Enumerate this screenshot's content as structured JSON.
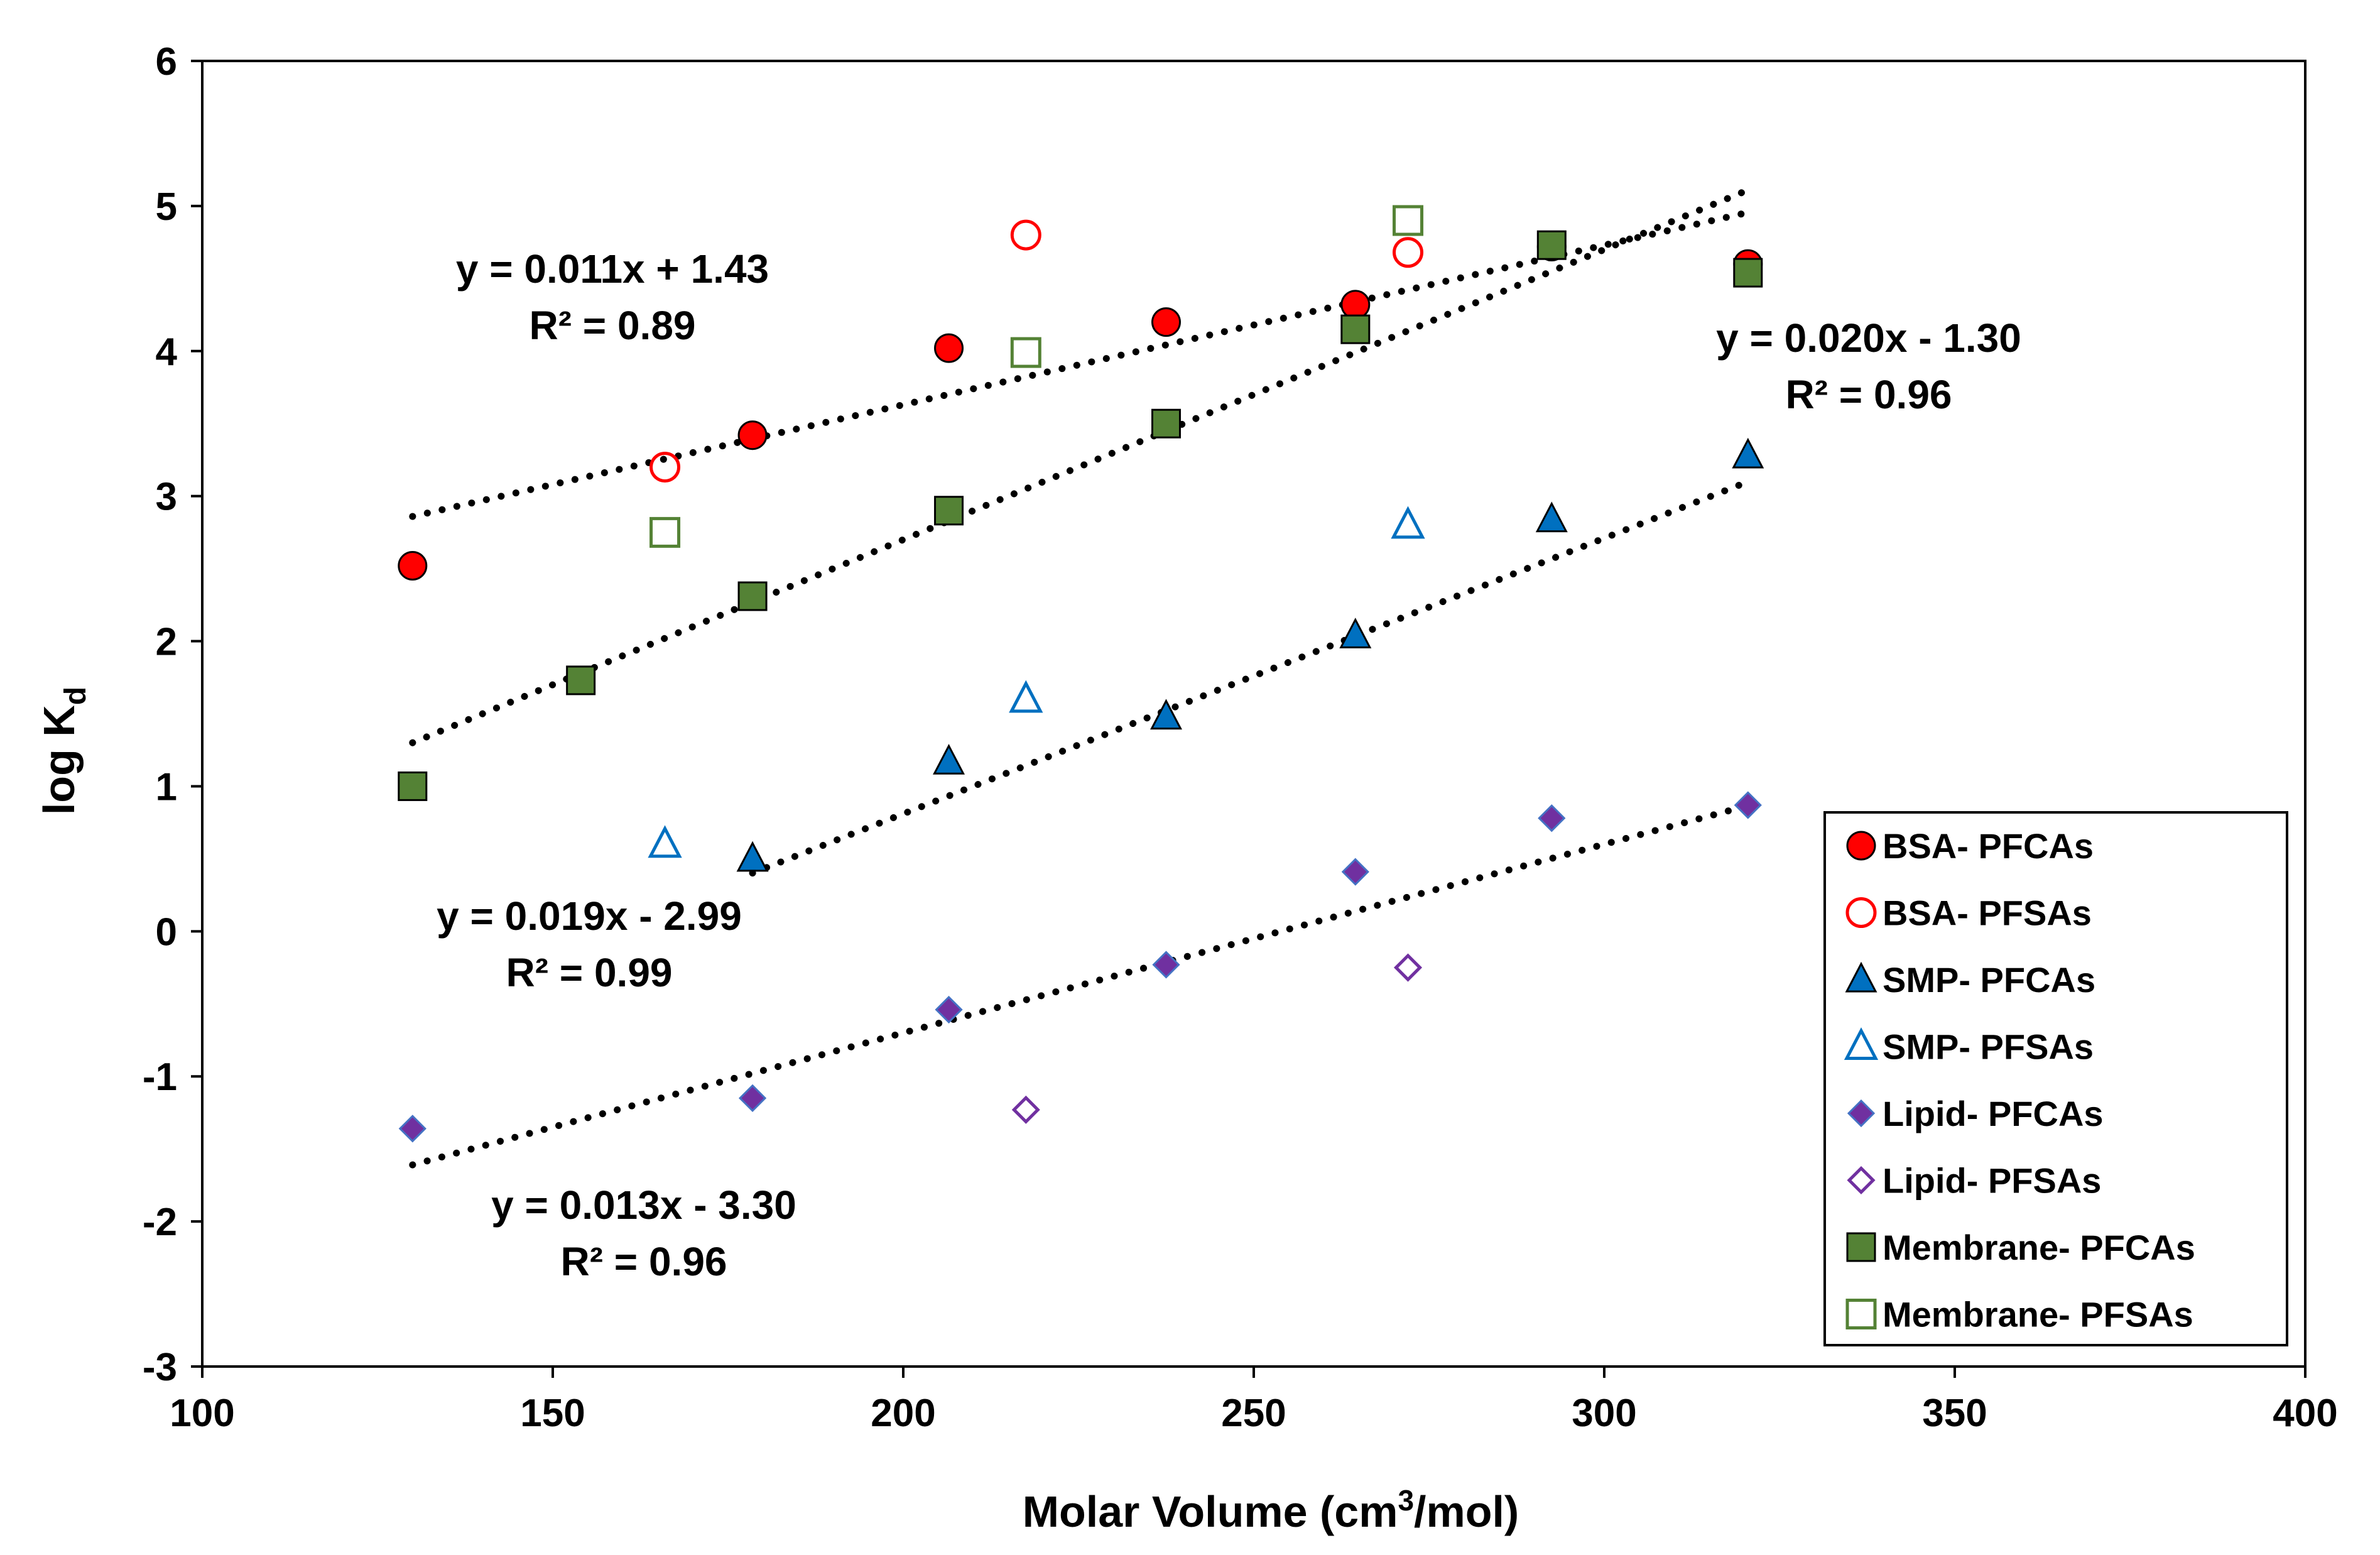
{
  "chart_data": {
    "type": "scatter",
    "title": "",
    "xlabel": "Molar Volume (cm³/mol)",
    "ylabel": "log Kd",
    "xlim": [
      100,
      400
    ],
    "ylim": [
      -3,
      6
    ],
    "xticks": [
      100,
      150,
      200,
      250,
      300,
      350,
      400
    ],
    "yticks": [
      -3,
      -2,
      -1,
      0,
      1,
      2,
      3,
      4,
      5,
      6
    ],
    "grid": false,
    "legend_position": "bottom-right",
    "series": [
      {
        "name": "BSA- PFCAs",
        "marker": "circle",
        "filled": true,
        "fill": "#ff0000",
        "stroke": "#000000",
        "points": [
          [
            130,
            2.52
          ],
          [
            178.5,
            3.42
          ],
          [
            206.5,
            4.02
          ],
          [
            237.5,
            4.2
          ],
          [
            264.5,
            4.32
          ],
          [
            292.5,
            4.72
          ],
          [
            320.5,
            4.6
          ]
        ]
      },
      {
        "name": "BSA- PFSAs",
        "marker": "circle",
        "filled": false,
        "fill": "none",
        "stroke": "#ff0000",
        "points": [
          [
            166,
            3.2
          ],
          [
            217.5,
            4.8
          ],
          [
            272,
            4.68
          ]
        ]
      },
      {
        "name": "SMP- PFCAs",
        "marker": "triangle",
        "filled": true,
        "fill": "#0070c0",
        "stroke": "#000000",
        "points": [
          [
            178.5,
            0.5
          ],
          [
            206.5,
            1.17
          ],
          [
            237.5,
            1.48
          ],
          [
            264.5,
            2.04
          ],
          [
            292.5,
            2.84
          ],
          [
            320.5,
            3.28
          ]
        ]
      },
      {
        "name": "SMP- PFSAs",
        "marker": "triangle",
        "filled": false,
        "fill": "none",
        "stroke": "#0070c0",
        "points": [
          [
            166,
            0.6
          ],
          [
            217.5,
            1.6
          ],
          [
            272,
            2.8
          ]
        ]
      },
      {
        "name": "Lipid- PFCAs",
        "marker": "diamond",
        "filled": true,
        "fill": "#7030a0",
        "stroke": "#4472c4",
        "points": [
          [
            130,
            -1.36
          ],
          [
            178.5,
            -1.15
          ],
          [
            206.5,
            -0.54
          ],
          [
            237.5,
            -0.23
          ],
          [
            264.5,
            0.41
          ],
          [
            292.5,
            0.78
          ],
          [
            320.5,
            0.87
          ]
        ]
      },
      {
        "name": "Lipid- PFSAs",
        "marker": "diamond",
        "filled": false,
        "fill": "none",
        "stroke": "#7030a0",
        "points": [
          [
            217.5,
            -1.23
          ],
          [
            272,
            -0.25
          ]
        ]
      },
      {
        "name": "Membrane- PFCAs",
        "marker": "square",
        "filled": true,
        "fill": "#548235",
        "stroke": "#000000",
        "points": [
          [
            130,
            1.0
          ],
          [
            154,
            1.73
          ],
          [
            178.5,
            2.31
          ],
          [
            206.5,
            2.9
          ],
          [
            237.5,
            3.5
          ],
          [
            264.5,
            4.15
          ],
          [
            292.5,
            4.73
          ],
          [
            320.5,
            4.54
          ]
        ]
      },
      {
        "name": "Membrane- PFSAs",
        "marker": "square",
        "filled": false,
        "fill": "none",
        "stroke": "#548235",
        "points": [
          [
            166,
            2.75
          ],
          [
            217.5,
            3.99
          ],
          [
            272,
            4.9
          ]
        ]
      }
    ],
    "trendlines": [
      {
        "series": "BSA",
        "x_range": [
          130,
          320
        ],
        "slope": 0.011,
        "intercept": 1.43
      },
      {
        "series": "Membrane",
        "x_range": [
          130,
          320
        ],
        "slope": 0.02,
        "intercept": -1.3
      },
      {
        "series": "SMP",
        "x_range": [
          178.5,
          320
        ],
        "slope": 0.019,
        "intercept": -2.99
      },
      {
        "series": "Lipid",
        "x_range": [
          130,
          320
        ],
        "slope": 0.013,
        "intercept": -3.3
      }
    ],
    "annotations": [
      {
        "line1": "y = 0.011x + 1.43",
        "line2": "R² = 0.89"
      },
      {
        "line1": "y = 0.020x - 1.30",
        "line2": "R² = 0.96"
      },
      {
        "line1": "y = 0.019x - 2.99",
        "line2": "R² = 0.99"
      },
      {
        "line1": "y = 0.013x - 3.30",
        "line2": "R² = 0.96"
      }
    ]
  }
}
